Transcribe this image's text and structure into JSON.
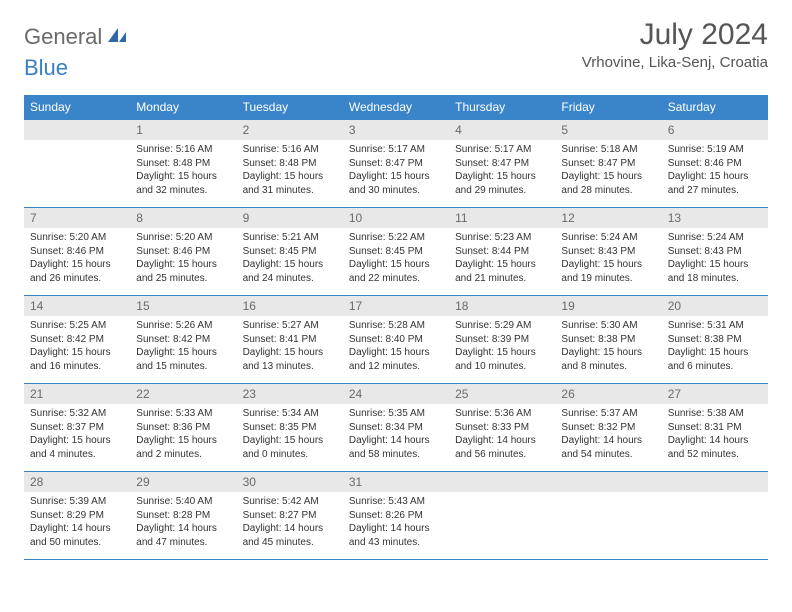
{
  "brand": {
    "part1": "General",
    "part2": "Blue"
  },
  "title": "July 2024",
  "location": "Vrhovine, Lika-Senj, Croatia",
  "colors": {
    "header_bg": "#3a85c9",
    "header_fg": "#ffffff",
    "daynum_bg": "#e8e8e8",
    "daynum_fg": "#6a6a6a",
    "border": "#3a85c9",
    "text": "#333333",
    "brand_gray": "#6a6a6a",
    "brand_blue": "#3a7fc4"
  },
  "typography": {
    "title_fontsize": 30,
    "location_fontsize": 15,
    "header_fontsize": 12,
    "daynum_fontsize": 12,
    "body_fontsize": 10
  },
  "columns": [
    "Sunday",
    "Monday",
    "Tuesday",
    "Wednesday",
    "Thursday",
    "Friday",
    "Saturday"
  ],
  "weeks": [
    [
      {
        "day": "",
        "sunrise": "",
        "sunset": "",
        "daylight": ""
      },
      {
        "day": "1",
        "sunrise": "Sunrise: 5:16 AM",
        "sunset": "Sunset: 8:48 PM",
        "daylight": "Daylight: 15 hours and 32 minutes."
      },
      {
        "day": "2",
        "sunrise": "Sunrise: 5:16 AM",
        "sunset": "Sunset: 8:48 PM",
        "daylight": "Daylight: 15 hours and 31 minutes."
      },
      {
        "day": "3",
        "sunrise": "Sunrise: 5:17 AM",
        "sunset": "Sunset: 8:47 PM",
        "daylight": "Daylight: 15 hours and 30 minutes."
      },
      {
        "day": "4",
        "sunrise": "Sunrise: 5:17 AM",
        "sunset": "Sunset: 8:47 PM",
        "daylight": "Daylight: 15 hours and 29 minutes."
      },
      {
        "day": "5",
        "sunrise": "Sunrise: 5:18 AM",
        "sunset": "Sunset: 8:47 PM",
        "daylight": "Daylight: 15 hours and 28 minutes."
      },
      {
        "day": "6",
        "sunrise": "Sunrise: 5:19 AM",
        "sunset": "Sunset: 8:46 PM",
        "daylight": "Daylight: 15 hours and 27 minutes."
      }
    ],
    [
      {
        "day": "7",
        "sunrise": "Sunrise: 5:20 AM",
        "sunset": "Sunset: 8:46 PM",
        "daylight": "Daylight: 15 hours and 26 minutes."
      },
      {
        "day": "8",
        "sunrise": "Sunrise: 5:20 AM",
        "sunset": "Sunset: 8:46 PM",
        "daylight": "Daylight: 15 hours and 25 minutes."
      },
      {
        "day": "9",
        "sunrise": "Sunrise: 5:21 AM",
        "sunset": "Sunset: 8:45 PM",
        "daylight": "Daylight: 15 hours and 24 minutes."
      },
      {
        "day": "10",
        "sunrise": "Sunrise: 5:22 AM",
        "sunset": "Sunset: 8:45 PM",
        "daylight": "Daylight: 15 hours and 22 minutes."
      },
      {
        "day": "11",
        "sunrise": "Sunrise: 5:23 AM",
        "sunset": "Sunset: 8:44 PM",
        "daylight": "Daylight: 15 hours and 21 minutes."
      },
      {
        "day": "12",
        "sunrise": "Sunrise: 5:24 AM",
        "sunset": "Sunset: 8:43 PM",
        "daylight": "Daylight: 15 hours and 19 minutes."
      },
      {
        "day": "13",
        "sunrise": "Sunrise: 5:24 AM",
        "sunset": "Sunset: 8:43 PM",
        "daylight": "Daylight: 15 hours and 18 minutes."
      }
    ],
    [
      {
        "day": "14",
        "sunrise": "Sunrise: 5:25 AM",
        "sunset": "Sunset: 8:42 PM",
        "daylight": "Daylight: 15 hours and 16 minutes."
      },
      {
        "day": "15",
        "sunrise": "Sunrise: 5:26 AM",
        "sunset": "Sunset: 8:42 PM",
        "daylight": "Daylight: 15 hours and 15 minutes."
      },
      {
        "day": "16",
        "sunrise": "Sunrise: 5:27 AM",
        "sunset": "Sunset: 8:41 PM",
        "daylight": "Daylight: 15 hours and 13 minutes."
      },
      {
        "day": "17",
        "sunrise": "Sunrise: 5:28 AM",
        "sunset": "Sunset: 8:40 PM",
        "daylight": "Daylight: 15 hours and 12 minutes."
      },
      {
        "day": "18",
        "sunrise": "Sunrise: 5:29 AM",
        "sunset": "Sunset: 8:39 PM",
        "daylight": "Daylight: 15 hours and 10 minutes."
      },
      {
        "day": "19",
        "sunrise": "Sunrise: 5:30 AM",
        "sunset": "Sunset: 8:38 PM",
        "daylight": "Daylight: 15 hours and 8 minutes."
      },
      {
        "day": "20",
        "sunrise": "Sunrise: 5:31 AM",
        "sunset": "Sunset: 8:38 PM",
        "daylight": "Daylight: 15 hours and 6 minutes."
      }
    ],
    [
      {
        "day": "21",
        "sunrise": "Sunrise: 5:32 AM",
        "sunset": "Sunset: 8:37 PM",
        "daylight": "Daylight: 15 hours and 4 minutes."
      },
      {
        "day": "22",
        "sunrise": "Sunrise: 5:33 AM",
        "sunset": "Sunset: 8:36 PM",
        "daylight": "Daylight: 15 hours and 2 minutes."
      },
      {
        "day": "23",
        "sunrise": "Sunrise: 5:34 AM",
        "sunset": "Sunset: 8:35 PM",
        "daylight": "Daylight: 15 hours and 0 minutes."
      },
      {
        "day": "24",
        "sunrise": "Sunrise: 5:35 AM",
        "sunset": "Sunset: 8:34 PM",
        "daylight": "Daylight: 14 hours and 58 minutes."
      },
      {
        "day": "25",
        "sunrise": "Sunrise: 5:36 AM",
        "sunset": "Sunset: 8:33 PM",
        "daylight": "Daylight: 14 hours and 56 minutes."
      },
      {
        "day": "26",
        "sunrise": "Sunrise: 5:37 AM",
        "sunset": "Sunset: 8:32 PM",
        "daylight": "Daylight: 14 hours and 54 minutes."
      },
      {
        "day": "27",
        "sunrise": "Sunrise: 5:38 AM",
        "sunset": "Sunset: 8:31 PM",
        "daylight": "Daylight: 14 hours and 52 minutes."
      }
    ],
    [
      {
        "day": "28",
        "sunrise": "Sunrise: 5:39 AM",
        "sunset": "Sunset: 8:29 PM",
        "daylight": "Daylight: 14 hours and 50 minutes."
      },
      {
        "day": "29",
        "sunrise": "Sunrise: 5:40 AM",
        "sunset": "Sunset: 8:28 PM",
        "daylight": "Daylight: 14 hours and 47 minutes."
      },
      {
        "day": "30",
        "sunrise": "Sunrise: 5:42 AM",
        "sunset": "Sunset: 8:27 PM",
        "daylight": "Daylight: 14 hours and 45 minutes."
      },
      {
        "day": "31",
        "sunrise": "Sunrise: 5:43 AM",
        "sunset": "Sunset: 8:26 PM",
        "daylight": "Daylight: 14 hours and 43 minutes."
      },
      {
        "day": "",
        "sunrise": "",
        "sunset": "",
        "daylight": ""
      },
      {
        "day": "",
        "sunrise": "",
        "sunset": "",
        "daylight": ""
      },
      {
        "day": "",
        "sunrise": "",
        "sunset": "",
        "daylight": ""
      }
    ]
  ]
}
